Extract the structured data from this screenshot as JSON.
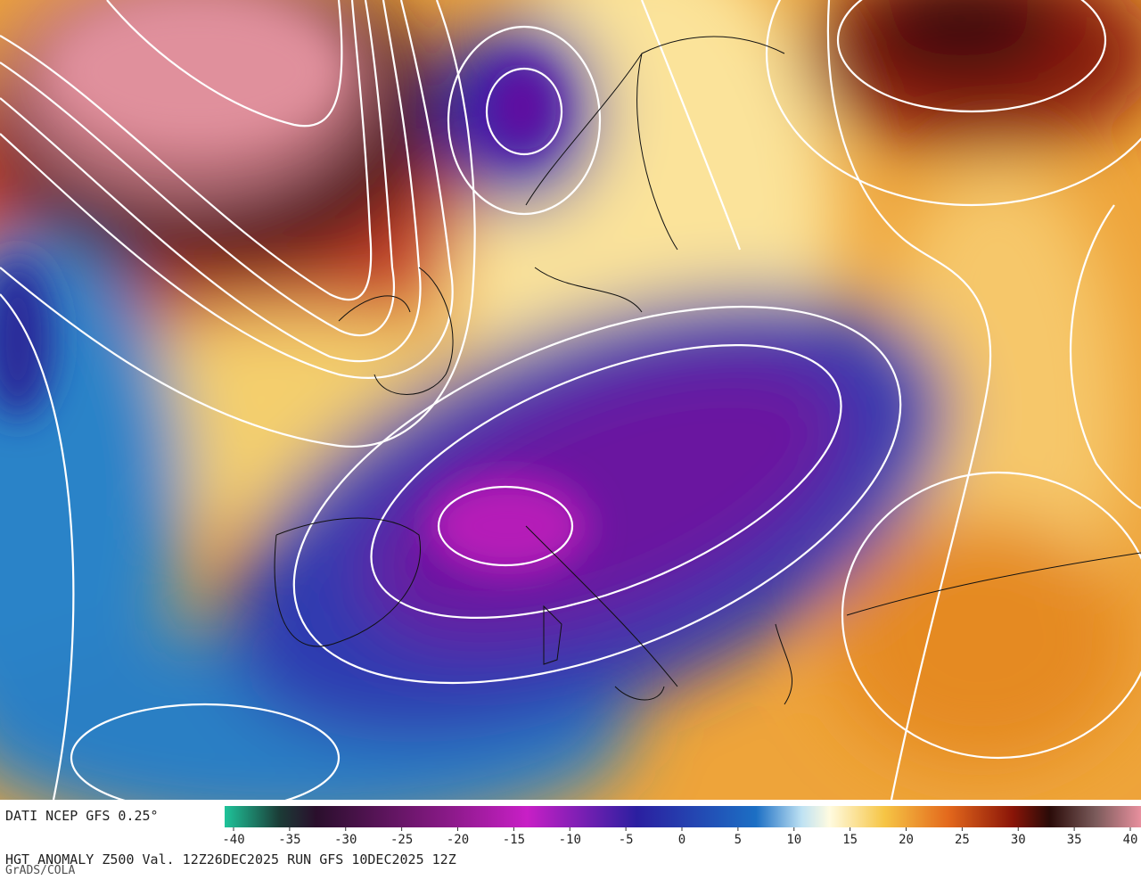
{
  "header": {
    "source": "DATI NCEP GFS 0.25°"
  },
  "colorbar": {
    "range": [
      -40,
      40
    ],
    "ticks": [
      -40,
      -35,
      -30,
      -25,
      -20,
      -15,
      -10,
      -5,
      0,
      5,
      10,
      15,
      20,
      25,
      30,
      35,
      40
    ]
  },
  "footer": {
    "caption": "HGT ANOMALY Z500 Val. 12Z26DEC2025 RUN GFS 10DEC2025 12Z",
    "credit": "GrADS/COLA"
  }
}
